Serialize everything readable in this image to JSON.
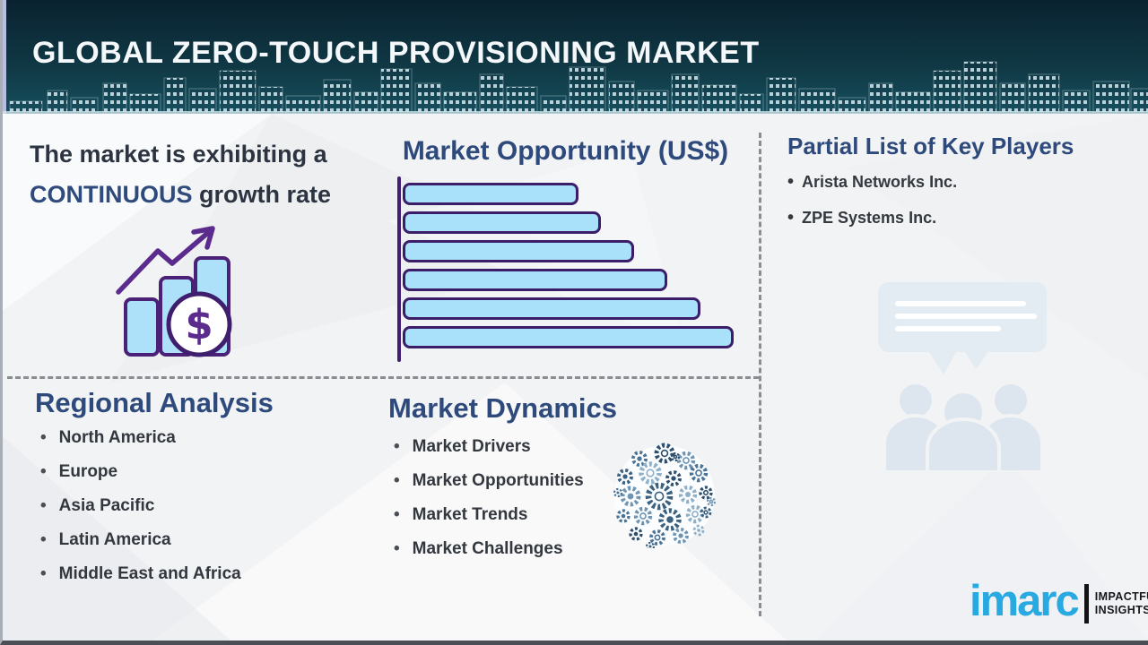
{
  "header": {
    "title": "GLOBAL ZERO-TOUCH PROVISIONING MARKET"
  },
  "growth_statement": {
    "line1": "The market is exhibiting a",
    "highlight": "CONTINUOUS",
    "line2": "growth rate"
  },
  "market_opportunity": {
    "title": "Market Opportunity (US$)"
  },
  "chart_data": {
    "type": "bar",
    "orientation": "horizontal",
    "title": "Market Opportunity (US$)",
    "values": [
      53,
      60,
      70,
      80,
      90,
      100
    ],
    "categories": [
      "",
      "",
      "",
      "",
      "",
      ""
    ],
    "axis_tick_labels_shown": false,
    "bar_fill": "#a9e0fa",
    "bar_border": "#3b1d6a"
  },
  "key_players": {
    "title": "Partial List of Key Players",
    "items": [
      "Arista Networks Inc.",
      "ZPE Systems Inc."
    ]
  },
  "regional_analysis": {
    "title": "Regional Analysis",
    "items": [
      "North America",
      "Europe",
      "Asia Pacific",
      "Latin America",
      "Middle East and Africa"
    ]
  },
  "market_dynamics": {
    "title": "Market Dynamics",
    "items": [
      "Market Drivers",
      "Market Opportunities",
      "Market Trends",
      "Market Challenges"
    ]
  },
  "logo": {
    "brand": "imarc",
    "tagline": [
      "IMPACTFUL",
      "INSIGHTS"
    ]
  },
  "icons": {
    "growth": "bar-chart-dollar-growth-icon",
    "key_players": "audience-speech-bubble-icon",
    "market_dynamics": "gears-sphere-icon",
    "header_art": "city-skyline-image"
  },
  "colors": {
    "header_bg": "#113a47",
    "heading_navy": "#2e4a7c",
    "text_dark": "#33383f",
    "bar_fill": "#a9e0fa",
    "bar_border": "#3b1d6a",
    "icon_purple": "#5b2b8d",
    "imarc_blue": "#29a9e1",
    "watermark_blue": "#dfe8f1",
    "gear_blue": "#42688c"
  }
}
